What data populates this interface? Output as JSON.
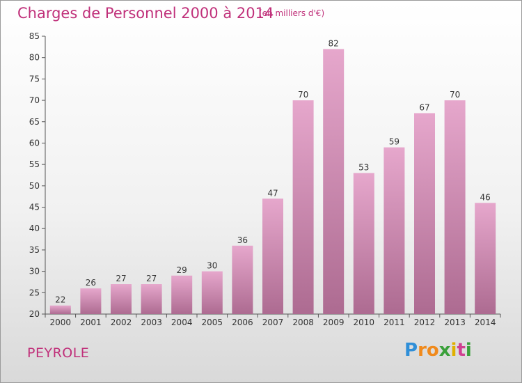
{
  "title": "Charges de Personnel 2000 à 2014",
  "subtitle": "(en milliers d'€)",
  "commune": "PEYROLE",
  "logo_letters": [
    "P",
    "r",
    "o",
    "x",
    "i",
    "t",
    "i"
  ],
  "logo_colors": [
    "#2f8fd8",
    "#f08a1c",
    "#f08a1c",
    "#3aa03a",
    "#e0b000",
    "#d04090",
    "#3aa03a"
  ],
  "colors": {
    "title": "#c0307a",
    "bar_top": "#e6a7cc",
    "bar_bottom": "#ad6b91"
  },
  "chart_data": {
    "type": "bar",
    "title": "Charges de Personnel 2000 à 2014",
    "subtitle": "(en milliers d'€)",
    "categories": [
      "2000",
      "2001",
      "2002",
      "2003",
      "2004",
      "2005",
      "2006",
      "2007",
      "2008",
      "2009",
      "2010",
      "2011",
      "2012",
      "2013",
      "2014"
    ],
    "values": [
      22,
      26,
      27,
      27,
      29,
      30,
      36,
      47,
      70,
      82,
      53,
      59,
      67,
      70,
      46
    ],
    "ylim": [
      20,
      85
    ],
    "yticks": [
      20,
      25,
      30,
      35,
      40,
      45,
      50,
      55,
      60,
      65,
      70,
      75,
      80,
      85
    ],
    "xlabel": "",
    "ylabel": "",
    "grid": false,
    "data_labels": true
  }
}
